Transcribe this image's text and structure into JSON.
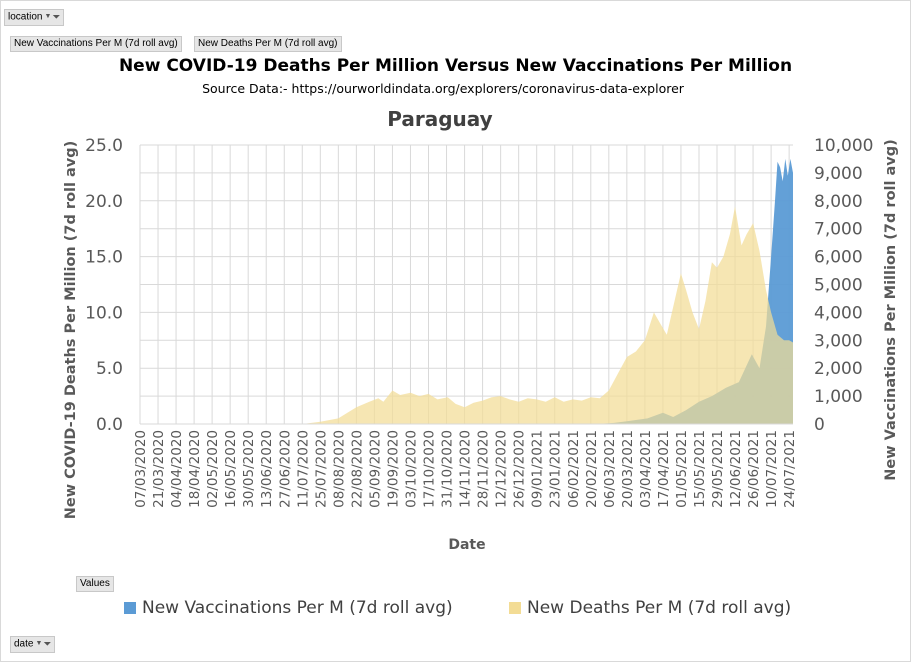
{
  "filters": {
    "location_label": "location",
    "date_label": "date",
    "values_label": "Values",
    "value_fields": [
      "New Vaccinations Per M (7d roll avg)",
      "New Deaths Per M (7d roll avg)"
    ]
  },
  "chart_data": {
    "type": "area",
    "title": "New COVID-19 Deaths Per Million  Versus  New Vaccinations  Per Million",
    "subtitle": "Source Data:- https://ourworldindata.org/explorers/coronavirus-data-explorer",
    "location": "Paraguay",
    "xlabel": "Date",
    "ylabel_left": "New COVID-19 Deaths Per Million (7d roll avg)",
    "ylabel_right": "New Vaccinations Per Million (7d roll avg)",
    "ylim_left": [
      0,
      25
    ],
    "ylim_right": [
      0,
      10000
    ],
    "yticks_left": [
      "0.0",
      "5.0",
      "10.0",
      "15.0",
      "20.0",
      "25.0"
    ],
    "yticks_right": [
      "0",
      "1,000",
      "2,000",
      "3,000",
      "4,000",
      "5,000",
      "6,000",
      "7,000",
      "8,000",
      "9,000",
      "10,000"
    ],
    "x_start": "2020-03-07",
    "x_end": "2021-07-27",
    "x_ticks": [
      "07/03/2020",
      "21/03/2020",
      "04/04/2020",
      "18/04/2020",
      "02/05/2020",
      "16/05/2020",
      "30/05/2020",
      "13/06/2020",
      "27/06/2020",
      "11/07/2020",
      "25/07/2020",
      "08/08/2020",
      "22/08/2020",
      "05/09/2020",
      "19/09/2020",
      "03/10/2020",
      "17/10/2020",
      "31/10/2020",
      "14/11/2020",
      "28/11/2020",
      "12/12/2020",
      "26/12/2020",
      "09/01/2021",
      "23/01/2021",
      "06/02/2021",
      "20/02/2021",
      "06/03/2021",
      "20/03/2021",
      "03/04/2021",
      "17/04/2021",
      "01/05/2021",
      "15/05/2021",
      "29/05/2021",
      "12/06/2021",
      "26/06/2021",
      "10/07/2021",
      "24/07/2021"
    ],
    "legend_position": "bottom",
    "grid": true,
    "series": [
      {
        "name": "New Vaccinations Per M (7d roll avg)",
        "axis": "right",
        "color": "#5b9bd5",
        "points": [
          [
            "2021-02-20",
            0
          ],
          [
            "2021-02-27",
            10
          ],
          [
            "2021-03-10",
            40
          ],
          [
            "2021-03-20",
            100
          ],
          [
            "2021-04-05",
            200
          ],
          [
            "2021-04-17",
            400
          ],
          [
            "2021-04-25",
            250
          ],
          [
            "2021-05-05",
            500
          ],
          [
            "2021-05-15",
            800
          ],
          [
            "2021-05-25",
            1000
          ],
          [
            "2021-06-05",
            1300
          ],
          [
            "2021-06-15",
            1500
          ],
          [
            "2021-06-25",
            2500
          ],
          [
            "2021-07-01",
            2000
          ],
          [
            "2021-07-06",
            3500
          ],
          [
            "2021-07-10",
            6000
          ],
          [
            "2021-07-13",
            8000
          ],
          [
            "2021-07-15",
            9400
          ],
          [
            "2021-07-17",
            9200
          ],
          [
            "2021-07-19",
            8700
          ],
          [
            "2021-07-21",
            9500
          ],
          [
            "2021-07-23",
            8900
          ],
          [
            "2021-07-25",
            9500
          ],
          [
            "2021-07-27",
            9000
          ]
        ]
      },
      {
        "name": "New Deaths Per M (7d roll avg)",
        "axis": "left",
        "color": "#f3dc95",
        "points": [
          [
            "2020-03-07",
            0
          ],
          [
            "2020-07-11",
            0
          ],
          [
            "2020-07-25",
            0.2
          ],
          [
            "2020-08-08",
            0.5
          ],
          [
            "2020-08-15",
            1.0
          ],
          [
            "2020-08-22",
            1.5
          ],
          [
            "2020-09-01",
            2.0
          ],
          [
            "2020-09-08",
            2.3
          ],
          [
            "2020-09-12",
            2.0
          ],
          [
            "2020-09-19",
            3.0
          ],
          [
            "2020-09-25",
            2.6
          ],
          [
            "2020-10-03",
            2.8
          ],
          [
            "2020-10-10",
            2.5
          ],
          [
            "2020-10-17",
            2.7
          ],
          [
            "2020-10-24",
            2.2
          ],
          [
            "2020-11-01",
            2.4
          ],
          [
            "2020-11-07",
            1.8
          ],
          [
            "2020-11-14",
            1.5
          ],
          [
            "2020-11-21",
            1.9
          ],
          [
            "2020-11-28",
            2.1
          ],
          [
            "2020-12-05",
            2.4
          ],
          [
            "2020-12-12",
            2.5
          ],
          [
            "2020-12-19",
            2.2
          ],
          [
            "2020-12-26",
            2.0
          ],
          [
            "2021-01-02",
            2.3
          ],
          [
            "2021-01-09",
            2.2
          ],
          [
            "2021-01-16",
            2.0
          ],
          [
            "2021-01-23",
            2.4
          ],
          [
            "2021-01-30",
            2.0
          ],
          [
            "2021-02-06",
            2.2
          ],
          [
            "2021-02-13",
            2.1
          ],
          [
            "2021-02-20",
            2.4
          ],
          [
            "2021-02-27",
            2.3
          ],
          [
            "2021-03-06",
            3.0
          ],
          [
            "2021-03-13",
            4.5
          ],
          [
            "2021-03-20",
            6.0
          ],
          [
            "2021-03-27",
            6.5
          ],
          [
            "2021-04-03",
            7.5
          ],
          [
            "2021-04-10",
            10.0
          ],
          [
            "2021-04-15",
            9.0
          ],
          [
            "2021-04-20",
            8.0
          ],
          [
            "2021-04-26",
            11.0
          ],
          [
            "2021-05-01",
            13.5
          ],
          [
            "2021-05-05",
            12.0
          ],
          [
            "2021-05-10",
            10.0
          ],
          [
            "2021-05-15",
            8.5
          ],
          [
            "2021-05-20",
            11.0
          ],
          [
            "2021-05-25",
            14.5
          ],
          [
            "2021-05-29",
            14.0
          ],
          [
            "2021-06-03",
            15.0
          ],
          [
            "2021-06-08",
            17.0
          ],
          [
            "2021-06-12",
            19.5
          ],
          [
            "2021-06-17",
            16.0
          ],
          [
            "2021-06-21",
            17.0
          ],
          [
            "2021-06-26",
            18.0
          ],
          [
            "2021-07-01",
            15.5
          ],
          [
            "2021-07-06",
            12.0
          ],
          [
            "2021-07-10",
            10.0
          ],
          [
            "2021-07-15",
            8.0
          ],
          [
            "2021-07-20",
            7.5
          ],
          [
            "2021-07-24",
            7.5
          ],
          [
            "2021-07-27",
            7.3
          ]
        ]
      }
    ]
  }
}
